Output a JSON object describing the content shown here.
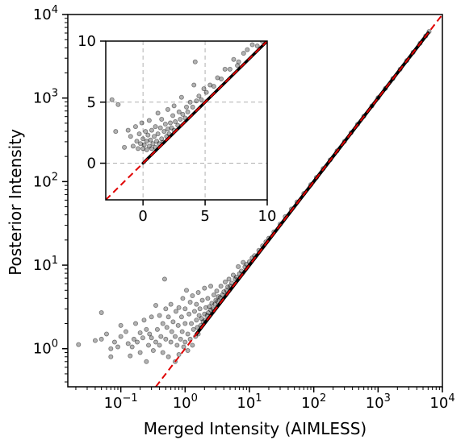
{
  "chart_data": [
    {
      "id": "main",
      "type": "scatter",
      "xlabel": "Merged Intensity (AIMLESS)",
      "ylabel": "Posterior Intensity",
      "xscale": "log",
      "yscale": "log",
      "xlim": [
        0.015,
        10000
      ],
      "ylim": [
        0.35,
        10000
      ],
      "x_ticks": [
        {
          "value": 0.1,
          "base": "10",
          "exp": "−1"
        },
        {
          "value": 1,
          "base": "10",
          "exp": "0"
        },
        {
          "value": 10,
          "base": "10",
          "exp": "1"
        },
        {
          "value": 100,
          "base": "10",
          "exp": "2"
        },
        {
          "value": 1000,
          "base": "10",
          "exp": "3"
        },
        {
          "value": 10000,
          "base": "10",
          "exp": "4"
        }
      ],
      "y_ticks": [
        {
          "value": 1,
          "base": "10",
          "exp": "0"
        },
        {
          "value": 10,
          "base": "10",
          "exp": "1"
        },
        {
          "value": 100,
          "base": "10",
          "exp": "2"
        },
        {
          "value": 1000,
          "base": "10",
          "exp": "3"
        },
        {
          "value": 10000,
          "base": "10",
          "exp": "4"
        }
      ],
      "grid": false,
      "point_color": "#000000",
      "point_alpha": 0.3,
      "reference_line": {
        "style": "dashed",
        "color": "#e00000",
        "slope": 1
      },
      "points": [
        [
          0.022,
          1.12
        ],
        [
          0.05,
          2.7
        ],
        [
          0.04,
          1.25
        ],
        [
          0.05,
          1.3
        ],
        [
          0.06,
          1.5
        ],
        [
          0.07,
          1.0
        ],
        [
          0.07,
          0.8
        ],
        [
          0.08,
          1.2
        ],
        [
          0.09,
          1.05
        ],
        [
          0.1,
          1.4
        ],
        [
          0.1,
          1.9
        ],
        [
          0.12,
          1.6
        ],
        [
          0.13,
          1.15
        ],
        [
          0.14,
          0.82
        ],
        [
          0.15,
          1.05
        ],
        [
          0.16,
          1.3
        ],
        [
          0.17,
          2.0
        ],
        [
          0.18,
          1.2
        ],
        [
          0.2,
          1.55
        ],
        [
          0.2,
          0.9
        ],
        [
          0.22,
          1.35
        ],
        [
          0.23,
          2.2
        ],
        [
          0.25,
          1.7
        ],
        [
          0.25,
          0.7
        ],
        [
          0.27,
          1.1
        ],
        [
          0.28,
          1.5
        ],
        [
          0.3,
          2.4
        ],
        [
          0.3,
          1.35
        ],
        [
          0.32,
          0.95
        ],
        [
          0.35,
          1.2
        ],
        [
          0.35,
          3.3
        ],
        [
          0.37,
          1.7
        ],
        [
          0.4,
          1.1
        ],
        [
          0.4,
          2.5
        ],
        [
          0.42,
          1.4
        ],
        [
          0.45,
          0.9
        ],
        [
          0.45,
          2.0
        ],
        [
          0.48,
          6.8
        ],
        [
          0.5,
          1.3
        ],
        [
          0.5,
          3.0
        ],
        [
          0.52,
          1.8
        ],
        [
          0.55,
          0.8
        ],
        [
          0.55,
          2.4
        ],
        [
          0.6,
          1.2
        ],
        [
          0.6,
          3.4
        ],
        [
          0.62,
          1.6
        ],
        [
          0.65,
          2.1
        ],
        [
          0.7,
          0.7
        ],
        [
          0.7,
          1.4
        ],
        [
          0.72,
          2.8
        ],
        [
          0.75,
          1.1
        ],
        [
          0.78,
          1.9
        ],
        [
          0.8,
          3.1
        ],
        [
          0.8,
          0.85
        ],
        [
          0.85,
          1.3
        ],
        [
          0.88,
          2.4
        ],
        [
          0.9,
          1.6
        ],
        [
          0.92,
          4.0
        ],
        [
          0.95,
          1.05
        ],
        [
          1.0,
          2.0
        ],
        [
          1.0,
          1.2
        ],
        [
          1.0,
          3.0
        ],
        [
          1.05,
          5.0
        ],
        [
          1.1,
          1.5
        ],
        [
          1.1,
          0.95
        ],
        [
          1.15,
          2.6
        ],
        [
          1.2,
          1.3
        ],
        [
          1.2,
          3.6
        ],
        [
          1.25,
          2.0
        ],
        [
          1.3,
          1.1
        ],
        [
          1.3,
          4.3
        ],
        [
          1.35,
          1.7
        ],
        [
          1.4,
          2.8
        ],
        [
          1.45,
          1.4
        ],
        [
          1.5,
          2.2
        ],
        [
          1.5,
          3.4
        ],
        [
          1.55,
          1.8
        ],
        [
          1.6,
          1.5
        ],
        [
          1.6,
          4.7
        ],
        [
          1.65,
          2.5
        ],
        [
          1.7,
          3.0
        ],
        [
          1.75,
          1.9
        ],
        [
          1.8,
          2.3
        ],
        [
          1.85,
          3.8
        ],
        [
          1.9,
          2.1
        ],
        [
          2.0,
          2.6
        ],
        [
          2.0,
          5.3
        ],
        [
          2.05,
          2.2
        ],
        [
          2.1,
          3.1
        ],
        [
          2.2,
          2.5
        ],
        [
          2.25,
          4.0
        ],
        [
          2.3,
          2.7
        ],
        [
          2.4,
          3.2
        ],
        [
          2.5,
          2.9
        ],
        [
          2.5,
          5.6
        ],
        [
          2.6,
          3.5
        ],
        [
          2.7,
          3.0
        ],
        [
          2.8,
          4.4
        ],
        [
          2.9,
          3.4
        ],
        [
          3.0,
          3.8
        ],
        [
          3.1,
          4.9
        ],
        [
          3.2,
          3.7
        ],
        [
          3.3,
          4.2
        ],
        [
          3.5,
          4.1
        ],
        [
          3.6,
          5.6
        ],
        [
          3.8,
          4.4
        ],
        [
          4.0,
          4.8
        ],
        [
          4.2,
          6.3
        ],
        [
          4.4,
          5.0
        ],
        [
          4.6,
          5.5
        ],
        [
          4.8,
          6.8
        ],
        [
          5.0,
          5.6
        ],
        [
          5.3,
          6.1
        ],
        [
          5.6,
          7.6
        ],
        [
          6.0,
          6.8
        ],
        [
          6.3,
          7.2
        ],
        [
          6.7,
          9.6
        ],
        [
          7.0,
          7.9
        ],
        [
          7.5,
          8.5
        ],
        [
          8.0,
          10.8
        ],
        [
          8.5,
          9.5
        ],
        [
          9.0,
          10.2
        ],
        [
          10,
          11
        ],
        [
          11,
          12.2
        ],
        [
          12,
          13
        ],
        [
          14,
          15
        ],
        [
          16,
          17
        ],
        [
          18,
          19
        ],
        [
          20,
          21
        ],
        [
          24,
          25
        ],
        [
          30,
          31
        ],
        [
          36,
          38
        ],
        [
          45,
          47
        ],
        [
          55,
          57
        ],
        [
          70,
          72
        ],
        [
          90,
          92
        ],
        [
          110,
          112
        ],
        [
          140,
          143
        ],
        [
          180,
          182
        ],
        [
          230,
          233
        ],
        [
          300,
          303
        ],
        [
          380,
          384
        ],
        [
          480,
          485
        ],
        [
          600,
          606
        ],
        [
          800,
          805
        ],
        [
          1000,
          1010
        ],
        [
          1300,
          1305
        ],
        [
          1700,
          1710
        ],
        [
          2200,
          2210
        ],
        [
          2800,
          2815
        ],
        [
          3500,
          3520
        ],
        [
          4500,
          4520
        ],
        [
          5500,
          5530
        ],
        [
          6200,
          6250
        ]
      ]
    },
    {
      "id": "inset",
      "type": "scatter",
      "xscale": "linear",
      "yscale": "linear",
      "xlim": [
        -3,
        10
      ],
      "ylim": [
        -3,
        10
      ],
      "x_ticks": [
        {
          "value": 0,
          "label": "0"
        },
        {
          "value": 5,
          "label": "5"
        },
        {
          "value": 10,
          "label": "10"
        }
      ],
      "y_ticks": [
        {
          "value": 0,
          "label": "0"
        },
        {
          "value": 5,
          "label": "5"
        },
        {
          "value": 10,
          "label": "10"
        }
      ],
      "grid": true,
      "point_color": "#000000",
      "point_alpha": 0.3,
      "reference_line": {
        "style": "dashed",
        "color": "#e00000",
        "slope": 1
      },
      "points": [
        [
          -2.5,
          5.2
        ],
        [
          -2.0,
          4.8
        ],
        [
          -2.2,
          2.6
        ],
        [
          -1.5,
          1.3
        ],
        [
          -1.2,
          2.7
        ],
        [
          -1.0,
          2.2
        ],
        [
          -0.8,
          1.4
        ],
        [
          -0.6,
          3.0
        ],
        [
          -0.5,
          1.8
        ],
        [
          -0.4,
          1.2
        ],
        [
          -0.3,
          2.4
        ],
        [
          -0.2,
          1.6
        ],
        [
          -0.1,
          3.3
        ],
        [
          0.0,
          1.2
        ],
        [
          0.0,
          2.0
        ],
        [
          0.1,
          1.5
        ],
        [
          0.2,
          2.6
        ],
        [
          0.3,
          1.1
        ],
        [
          0.3,
          1.8
        ],
        [
          0.4,
          2.3
        ],
        [
          0.5,
          1.4
        ],
        [
          0.5,
          3.5
        ],
        [
          0.6,
          1.9
        ],
        [
          0.7,
          1.2
        ],
        [
          0.7,
          2.7
        ],
        [
          0.8,
          1.6
        ],
        [
          0.9,
          2.2
        ],
        [
          1.0,
          1.3
        ],
        [
          1.0,
          3.0
        ],
        [
          1.1,
          1.8
        ],
        [
          1.2,
          2.4
        ],
        [
          1.2,
          4.1
        ],
        [
          1.3,
          1.6
        ],
        [
          1.4,
          2.9
        ],
        [
          1.5,
          2.0
        ],
        [
          1.5,
          3.6
        ],
        [
          1.6,
          1.7
        ],
        [
          1.7,
          2.6
        ],
        [
          1.8,
          3.2
        ],
        [
          1.9,
          2.2
        ],
        [
          2.0,
          2.8
        ],
        [
          2.0,
          4.4
        ],
        [
          2.1,
          2.4
        ],
        [
          2.2,
          3.3
        ],
        [
          2.3,
          2.9
        ],
        [
          2.4,
          3.9
        ],
        [
          2.5,
          2.7
        ],
        [
          2.5,
          4.7
        ],
        [
          2.6,
          3.4
        ],
        [
          2.8,
          3.1
        ],
        [
          2.9,
          4.2
        ],
        [
          3.0,
          3.6
        ],
        [
          3.1,
          5.4
        ],
        [
          3.2,
          4.0
        ],
        [
          3.4,
          3.7
        ],
        [
          3.5,
          4.6
        ],
        [
          3.6,
          4.2
        ],
        [
          3.8,
          5.0
        ],
        [
          4.0,
          4.6
        ],
        [
          4.1,
          6.4
        ],
        [
          4.3,
          5.1
        ],
        [
          4.5,
          5.5
        ],
        [
          4.7,
          5.2
        ],
        [
          4.9,
          6.1
        ],
        [
          5.1,
          5.8
        ],
        [
          5.4,
          6.4
        ],
        [
          5.7,
          6.3
        ],
        [
          6.0,
          7.0
        ],
        [
          6.3,
          6.9
        ],
        [
          6.6,
          7.7
        ],
        [
          7.0,
          7.7
        ],
        [
          7.3,
          8.5
        ],
        [
          7.7,
          8.3
        ],
        [
          8.1,
          9.0
        ],
        [
          8.4,
          9.3
        ],
        [
          8.8,
          9.7
        ],
        [
          9.2,
          9.6
        ],
        [
          9.6,
          10.0
        ],
        [
          4.2,
          8.3
        ],
        [
          7.6,
          8.0
        ],
        [
          8.9,
          10.2
        ]
      ]
    }
  ]
}
